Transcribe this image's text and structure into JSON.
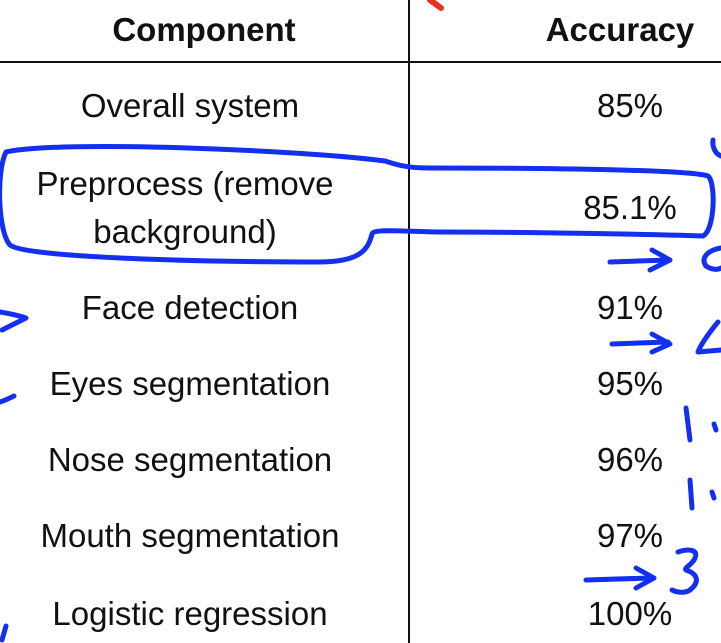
{
  "table": {
    "headers": {
      "component": "Component",
      "accuracy": "Accuracy"
    },
    "rows": [
      {
        "component": "Overall system",
        "accuracy": "85%"
      },
      {
        "component": "Preprocess (remove background)",
        "accuracy": "85.1%"
      },
      {
        "component": "Face detection",
        "accuracy": "91%"
      },
      {
        "component": "Eyes segmentation",
        "accuracy": "95%"
      },
      {
        "component": "Nose segmentation",
        "accuracy": "96%"
      },
      {
        "component": "Mouth segmentation",
        "accuracy": "97%"
      },
      {
        "component": "Logistic regression",
        "accuracy": "100%"
      }
    ]
  },
  "annotations": {
    "ink_color": "#1330f0",
    "marker_color": "#e8321e"
  }
}
